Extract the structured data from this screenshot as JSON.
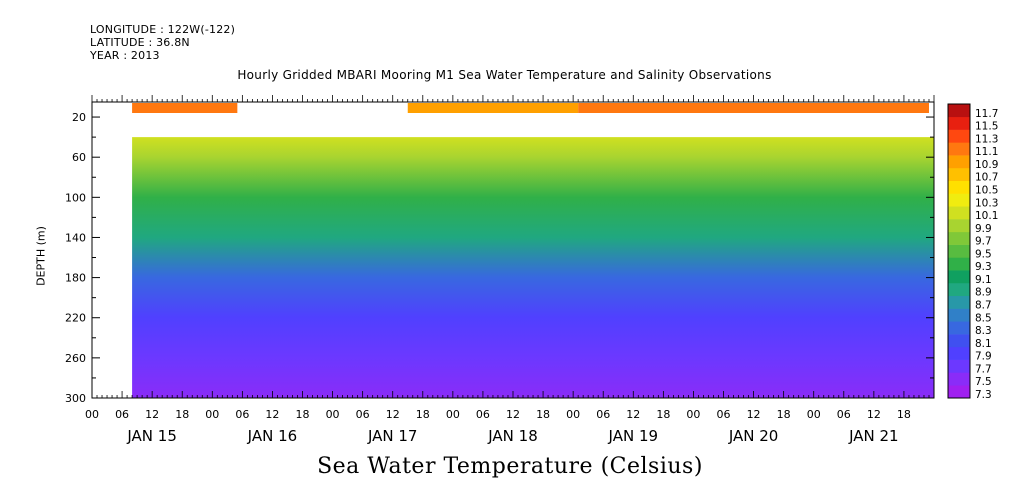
{
  "header": {
    "longitude": "LONGITUDE : 122W(-122)",
    "latitude": "LATITUDE : 36.8N",
    "year": "YEAR : 2013"
  },
  "chart_data": {
    "type": "heatmap",
    "title": "Hourly Gridded MBARI Mooring M1 Sea Water Temperature and Salinity Observations",
    "xlabel": "Sea Water Temperature (Celsius)",
    "ylabel": "DEPTH (m)",
    "x_hour_ticks": [
      "00",
      "06",
      "12",
      "18",
      "00",
      "06",
      "12",
      "18",
      "00",
      "06",
      "12",
      "18",
      "00",
      "06",
      "12",
      "18",
      "00",
      "06",
      "12",
      "18",
      "00",
      "06",
      "12",
      "18",
      "00",
      "06",
      "12",
      "18"
    ],
    "x_day_labels": [
      "JAN 15",
      "JAN 16",
      "JAN 17",
      "JAN 18",
      "JAN 19",
      "JAN 20",
      "JAN 21"
    ],
    "x_range": [
      "2013-01-15 00:00",
      "2013-01-21 23:00"
    ],
    "y_ticks": [
      20,
      60,
      100,
      140,
      180,
      220,
      260,
      300
    ],
    "y_range": [
      300,
      5
    ],
    "colorbar_levels": [
      7.3,
      7.5,
      7.7,
      7.9,
      8.1,
      8.3,
      8.5,
      8.7,
      8.9,
      9.1,
      9.3,
      9.5,
      9.7,
      9.9,
      10.1,
      10.3,
      10.5,
      10.7,
      10.9,
      11.1,
      11.3,
      11.5,
      11.7
    ],
    "colorbar_labels": [
      "7.3",
      "7.5",
      "7.7",
      "7.9",
      "8.1",
      "8.3",
      "8.5",
      "8.7",
      "8.9",
      "9.1",
      "9.3",
      "9.5",
      "9.7",
      "9.9",
      "10.1",
      "10.3",
      "10.5",
      "10.7",
      "10.9",
      "11.1",
      "11.3",
      "11.5",
      "11.7"
    ],
    "colorbar_colors": [
      "#a020f0",
      "#8a2cf8",
      "#6c38ff",
      "#5040ff",
      "#4050f0",
      "#3868e0",
      "#3080c8",
      "#2898a8",
      "#20a880",
      "#10a060",
      "#30b048",
      "#58bc40",
      "#80c838",
      "#a8d430",
      "#d0e020",
      "#f0ec10",
      "#ffe000",
      "#ffc000",
      "#ffa000",
      "#ff7810",
      "#ff4810",
      "#e82010",
      "#b81010"
    ],
    "data_start": "2013-01-15 08:00",
    "surface_segments": [
      {
        "start": "2013-01-15 08:00",
        "end": "2013-01-16 05:00",
        "depth": 10,
        "temperature": 11.2
      },
      {
        "start": "2013-01-17 15:00",
        "end": "2013-01-19 01:00",
        "depth": 10,
        "temperature": 10.9
      },
      {
        "start": "2013-01-19 01:00",
        "end": "2013-01-21 23:00",
        "depth": 10,
        "temperature": 11.2
      }
    ],
    "profile_depths": [
      40,
      60,
      100,
      140,
      180,
      220,
      260,
      300
    ],
    "profile_temperature_mean": [
      10.1,
      9.9,
      9.4,
      8.9,
      8.4,
      8.0,
      7.8,
      7.6
    ]
  }
}
